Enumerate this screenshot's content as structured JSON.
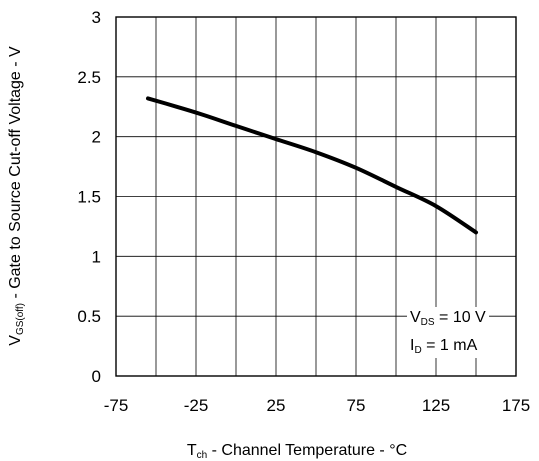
{
  "chart_data": {
    "type": "line",
    "title": "",
    "xlabel": {
      "symbol": "T",
      "subscript": "ch",
      "text": " - Channel Temperature - °C"
    },
    "ylabel": {
      "symbol": "V",
      "subscript": "GS(off)",
      "text": " - Gate to Source Cut-off Voltage - V"
    },
    "xlim": [
      -75,
      175
    ],
    "ylim": [
      0,
      3
    ],
    "x_ticks": [
      -75,
      -50,
      -25,
      0,
      25,
      50,
      75,
      100,
      125,
      150,
      175
    ],
    "x_tick_labels": [
      "-75",
      "",
      "-25",
      "",
      "25",
      "",
      "75",
      "",
      "125",
      "",
      "175"
    ],
    "y_ticks": [
      0,
      0.5,
      1,
      1.5,
      2,
      2.5,
      3
    ],
    "y_tick_labels": [
      "0",
      "0.5",
      "1",
      "1.5",
      "2",
      "2.5",
      "3"
    ],
    "grid": true,
    "series": [
      {
        "x": [
          -55,
          -37,
          -20,
          0,
          25,
          50,
          75,
          100,
          125,
          150
        ],
        "y": [
          2.32,
          2.25,
          2.18,
          2.09,
          1.98,
          1.87,
          1.74,
          1.58,
          1.42,
          1.2
        ]
      }
    ],
    "annotations": [
      {
        "symbol": "V",
        "subscript": "DS",
        "text": " = 10 V"
      },
      {
        "symbol": "I",
        "subscript": "D",
        "text": " = 1 mA"
      }
    ]
  }
}
